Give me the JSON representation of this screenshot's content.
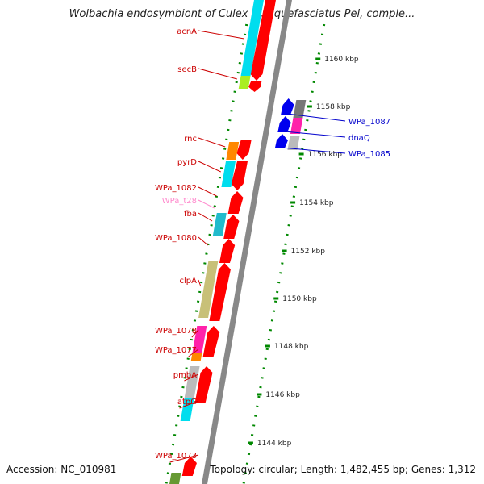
{
  "title": "Wolbachia endosymbiont of Culex quinquefasciatus Pel, comple...",
  "footer": {
    "accession": "Accession: NC_010981",
    "summary": "Topology: circular; Length: 1,482,455 bp; Genes: 1,312"
  },
  "scale": {
    "tick_labels": [
      "1160 kbp",
      "1158 kbp",
      "1156 kbp",
      "1154 kbp",
      "1152 kbp",
      "1150 kbp",
      "1148 kbp",
      "1146 kbp",
      "1144 kbp"
    ]
  },
  "gene_labels_left": [
    {
      "name": "acnA",
      "color": "#cc0000"
    },
    {
      "name": "secB",
      "color": "#cc0000"
    },
    {
      "name": "rnc",
      "color": "#cc0000"
    },
    {
      "name": "pyrD",
      "color": "#cc0000"
    },
    {
      "name": "WPa_1082",
      "color": "#cc0000"
    },
    {
      "name": "WPa_t28",
      "color": "#ff88cc"
    },
    {
      "name": "fba",
      "color": "#cc0000"
    },
    {
      "name": "WPa_1080",
      "color": "#cc0000"
    },
    {
      "name": "clpA",
      "color": "#cc0000"
    },
    {
      "name": "WPa_1078",
      "color": "#cc0000"
    },
    {
      "name": "WPa_1077",
      "color": "#cc0000"
    },
    {
      "name": "pmbA",
      "color": "#cc0000"
    },
    {
      "name": "atpG",
      "color": "#cc0000"
    },
    {
      "name": "WPa_1073",
      "color": "#cc0000"
    }
  ],
  "gene_labels_right": [
    {
      "name": "WPa_1087",
      "color": "#0000cc"
    },
    {
      "name": "dnaQ",
      "color": "#0000cc"
    },
    {
      "name": "WPa_1085",
      "color": "#0000cc"
    }
  ],
  "colors": {
    "forward_gene": "#ff0000",
    "reverse_gene": "#0000ee",
    "backbone": "#888888",
    "dotted_ring": "#008800",
    "cog_cyan": "#00ddee",
    "cog_teal": "#22bbcc",
    "cog_orange": "#ff8800",
    "cog_lime": "#aaee22",
    "cog_khaki": "#c8c078",
    "cog_grey": "#bbbbbb",
    "cog_magenta": "#ff22aa",
    "cog_olive": "#669933"
  }
}
